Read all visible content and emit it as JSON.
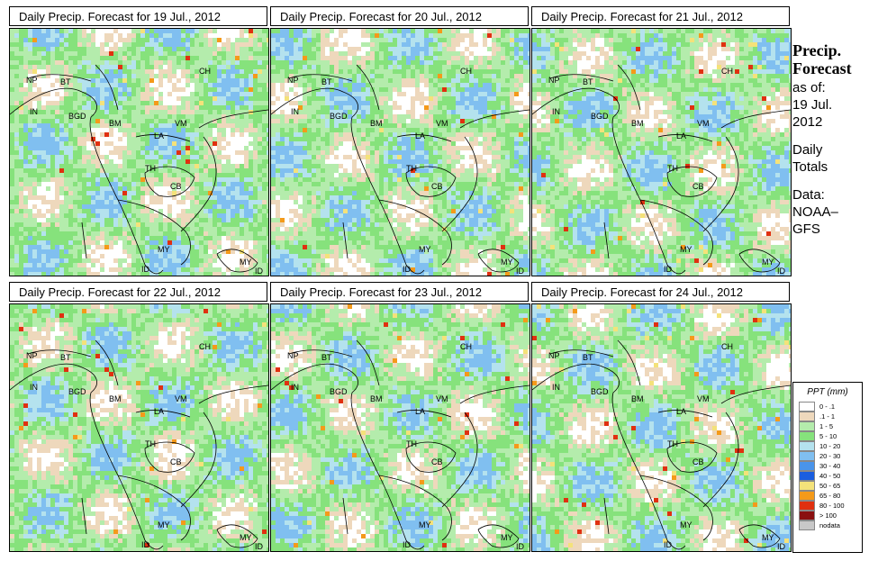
{
  "panels": [
    {
      "title": "Daily Precip. Forecast for  19 Jul., 2012"
    },
    {
      "title": "Daily Precip. Forecast for  20 Jul., 2012"
    },
    {
      "title": "Daily Precip. Forecast for  21 Jul., 2012"
    },
    {
      "title": "Daily Precip. Forecast for  22 Jul., 2012"
    },
    {
      "title": "Daily Precip. Forecast for  23 Jul., 2012"
    },
    {
      "title": "Daily Precip. Forecast for  24 Jul., 2012"
    }
  ],
  "country_labels": [
    "NP",
    "BT",
    "IN",
    "BGD",
    "BM",
    "VM",
    "LA",
    "CH",
    "TH",
    "CB",
    "MY",
    "ID",
    "MY",
    "ID"
  ],
  "sidebar": {
    "line1": "Precip.",
    "line2": "Forecast",
    "asof": "as of:",
    "date1": "19 Jul.",
    "date2": "2012",
    "daily1": "Daily",
    "daily2": "Totals",
    "data1": "Data:",
    "data2": "NOAA–",
    "data3": "GFS"
  },
  "legend": {
    "title": "PPT (mm)",
    "items": [
      {
        "label": "0 - .1",
        "color": "#ffffff"
      },
      {
        "label": ".1 - 1",
        "color": "#eed8bc"
      },
      {
        "label": "1 - 5",
        "color": "#b4ecac"
      },
      {
        "label": "5 - 10",
        "color": "#86e27c"
      },
      {
        "label": "10 - 20",
        "color": "#b4e2ee"
      },
      {
        "label": "20 - 30",
        "color": "#80bff0"
      },
      {
        "label": "30 - 40",
        "color": "#4a94ea"
      },
      {
        "label": "40 - 50",
        "color": "#1a5ee0"
      },
      {
        "label": "50 - 65",
        "color": "#f4e27a"
      },
      {
        "label": "65 - 80",
        "color": "#f49a1a"
      },
      {
        "label": "80 - 100",
        "color": "#e03010"
      },
      {
        "label": "> 100",
        "color": "#8a1010"
      },
      {
        "label": "nodata",
        "color": "#c8c8c8"
      }
    ]
  }
}
